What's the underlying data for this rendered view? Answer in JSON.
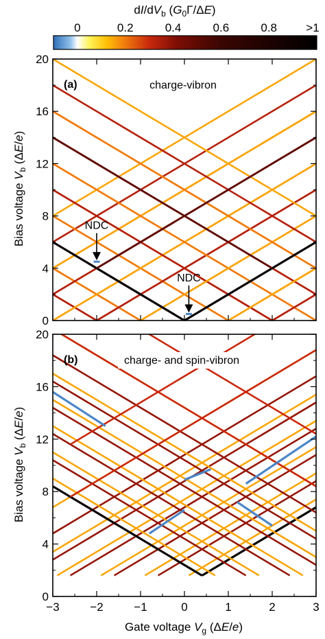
{
  "colorbar": {
    "label": "dI/dV_b (G_0Γ/ΔE)",
    "ticks": [
      "0",
      "0.2",
      "0.4",
      "0.6",
      "0.8",
      ">1"
    ],
    "tick_values": [
      0,
      0.2,
      0.4,
      0.6,
      0.8,
      1.0
    ],
    "range": [
      -0.1,
      1.0
    ],
    "stops": [
      {
        "v": -0.1,
        "c": "#2f6fb8"
      },
      {
        "v": -0.03,
        "c": "#8fc0ea"
      },
      {
        "v": 0.0,
        "c": "#ffffff"
      },
      {
        "v": 0.05,
        "c": "#fff35a"
      },
      {
        "v": 0.12,
        "c": "#ffc107"
      },
      {
        "v": 0.2,
        "c": "#f07a0f"
      },
      {
        "v": 0.3,
        "c": "#c8280c"
      },
      {
        "v": 0.42,
        "c": "#7a0d04"
      },
      {
        "v": 0.6,
        "c": "#3a0602"
      },
      {
        "v": 1.0,
        "c": "#000000"
      }
    ]
  },
  "chart_data": [
    {
      "type": "heatmap",
      "panel": "(a)",
      "title": "charge-vibron",
      "xlabel": "",
      "ylabel": "Bias voltage V_b (ΔE/e)",
      "xlim": [
        -3,
        3
      ],
      "ylim": [
        0,
        20
      ],
      "xticks": [],
      "yticks": [
        "0",
        "4",
        "8",
        "12",
        "16",
        "20"
      ],
      "features": {
        "description": "Coulomb-diamond resonance lines; V_b = 2|V_g - v0| + offset for each family",
        "positive_slope_lines": [
          {
            "v0": 0.0,
            "offset": 0,
            "strength": 0.9
          },
          {
            "v0": 0.0,
            "offset": 0.5,
            "strength": 0.1
          },
          {
            "v0": -2.0,
            "offset": 0,
            "strength": 0.35
          },
          {
            "v0": -2.0,
            "offset": 0.5,
            "strength": 0.35
          },
          {
            "v0": -2.0,
            "offset": 1.0,
            "strength": 0.25
          },
          {
            "v0": -2.0,
            "offset": 1.5,
            "strength": 0.15
          }
        ],
        "negative_slope_lines": [
          {
            "v0": 0.0,
            "offset": 0,
            "strength": 0.9
          },
          {
            "v0": 0.0,
            "offset": 0.5,
            "strength": 0.1
          },
          {
            "v0": 2.0,
            "offset": 0,
            "strength": 0.35
          },
          {
            "v0": 2.0,
            "offset": 0.5,
            "strength": 0.35
          },
          {
            "v0": 2.0,
            "offset": 1.0,
            "strength": 0.25
          },
          {
            "v0": 2.0,
            "offset": 1.5,
            "strength": 0.15
          }
        ],
        "ndc_points": [
          {
            "x": -2.0,
            "y": 4.5
          },
          {
            "x": 0.1,
            "y": 0.5
          }
        ]
      },
      "annotations": [
        {
          "text": "NDC",
          "x": -2.0,
          "y": 7.0
        },
        {
          "text": "NDC",
          "x": 0.1,
          "y": 3.0
        }
      ]
    },
    {
      "type": "heatmap",
      "panel": "(b)",
      "title": "charge- and spin-vibron",
      "xlabel": "Gate voltage V_g (ΔE/e)",
      "ylabel": "Bias voltage V_b (ΔE/e)",
      "xlim": [
        -3,
        3
      ],
      "ylim": [
        0,
        20
      ],
      "xticks": [
        "−3",
        "−2",
        "−1",
        "0",
        "1",
        "2",
        "3"
      ],
      "yticks": [
        "0",
        "4",
        "8",
        "12",
        "16",
        "20"
      ],
      "features": {
        "vertex": {
          "x": 0.4,
          "y": 1.6
        },
        "positive_slope_offsets": [
          0,
          0.6,
          2.0,
          2.6,
          4.0,
          4.6,
          6.0,
          6.6,
          8.0,
          8.6,
          10.0,
          12.0
        ],
        "negative_slope_offsets": [
          0,
          0.6,
          2.0,
          2.6,
          4.0,
          4.6,
          6.0,
          6.6,
          8.0,
          8.6,
          10.0,
          12.0
        ],
        "ndc_segments": [
          {
            "x1": 1.4,
            "y1": 8.6,
            "x2": 3.0,
            "y2": 12.2
          },
          {
            "x1": -0.8,
            "y1": 4.8,
            "x2": 0.0,
            "y2": 6.6
          },
          {
            "x1": 0.0,
            "y1": 8.9,
            "x2": 0.6,
            "y2": 9.7
          },
          {
            "x1": -3.0,
            "y1": 15.6,
            "x2": -1.8,
            "y2": 13.0
          },
          {
            "x1": 1.2,
            "y1": 7.2,
            "x2": 2.0,
            "y2": 5.4
          }
        ]
      }
    }
  ]
}
